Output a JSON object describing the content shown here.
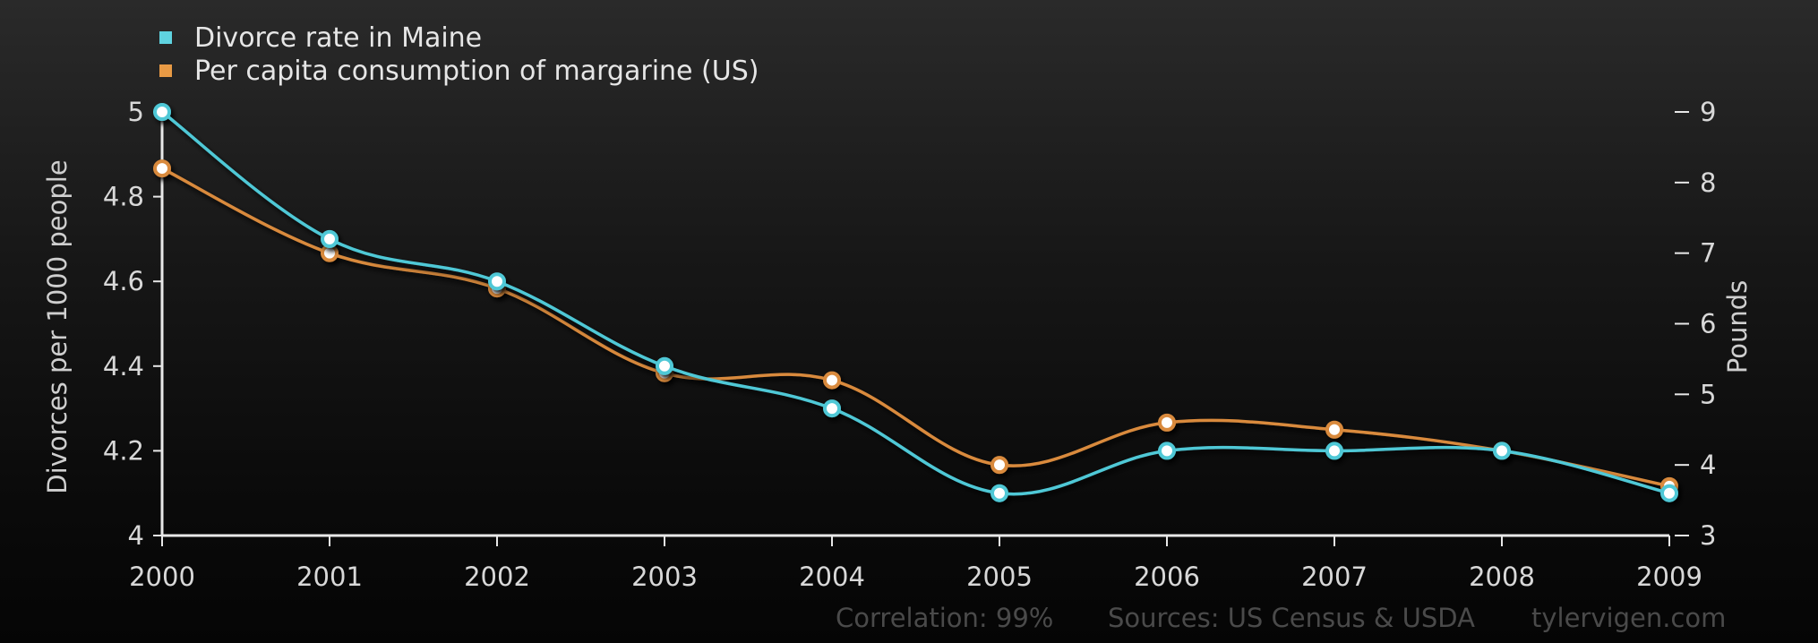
{
  "chart_data": {
    "type": "line",
    "x": [
      2000,
      2001,
      2002,
      2003,
      2004,
      2005,
      2006,
      2007,
      2008,
      2009
    ],
    "x_tick_labels": [
      "2000",
      "2001",
      "2002",
      "2003",
      "2004",
      "2005",
      "2006",
      "2007",
      "2008",
      "2009"
    ],
    "series": [
      {
        "name": "Divorce rate in Maine",
        "axis": "left",
        "color": "#4fc8d6",
        "values": [
          5.0,
          4.7,
          4.6,
          4.4,
          4.3,
          4.1,
          4.2,
          4.2,
          4.2,
          4.1
        ]
      },
      {
        "name": "Per capita consumption of margarine (US)",
        "axis": "right",
        "color": "#d98a3c",
        "values": [
          8.2,
          7.0,
          6.5,
          5.3,
          5.2,
          4.0,
          4.6,
          4.5,
          4.2,
          3.7
        ]
      }
    ],
    "ylabel_left": "Divorces per 1000 people",
    "ylabel_right": "Pounds",
    "ylim_left": [
      4,
      5
    ],
    "ylim_right": [
      3,
      9
    ],
    "yticks_left": [
      "4",
      "4.2",
      "4.4",
      "4.6",
      "4.8",
      "5"
    ],
    "yticks_right": [
      "3",
      "4",
      "5",
      "6",
      "7",
      "8",
      "9"
    ],
    "grid": false,
    "legend_position": "top-left",
    "smooth": true
  },
  "footer": {
    "correlation": "Correlation: 99%",
    "sources": "Sources: US Census & USDA",
    "site": "tylervigen.com"
  }
}
